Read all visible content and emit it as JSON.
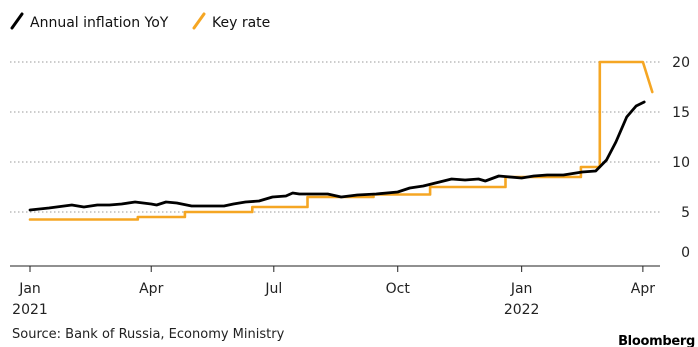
{
  "chart_data": {
    "type": "line",
    "series": [
      {
        "name": "Annual inflation YoY",
        "color": "#000000",
        "points": [
          [
            "2021-01-01",
            5.2
          ],
          [
            "2021-01-15",
            5.4
          ],
          [
            "2021-02-01",
            5.7
          ],
          [
            "2021-02-10",
            5.5
          ],
          [
            "2021-02-20",
            5.7
          ],
          [
            "2021-03-01",
            5.7
          ],
          [
            "2021-03-10",
            5.8
          ],
          [
            "2021-03-20",
            6.0
          ],
          [
            "2021-04-01",
            5.8
          ],
          [
            "2021-04-05",
            5.7
          ],
          [
            "2021-04-12",
            6.0
          ],
          [
            "2021-04-20",
            5.9
          ],
          [
            "2021-05-01",
            5.6
          ],
          [
            "2021-05-15",
            5.6
          ],
          [
            "2021-05-25",
            5.6
          ],
          [
            "2021-06-01",
            5.8
          ],
          [
            "2021-06-10",
            6.0
          ],
          [
            "2021-06-20",
            6.1
          ],
          [
            "2021-06-30",
            6.5
          ],
          [
            "2021-07-10",
            6.6
          ],
          [
            "2021-07-15",
            6.9
          ],
          [
            "2021-07-20",
            6.8
          ],
          [
            "2021-07-30",
            6.8
          ],
          [
            "2021-08-10",
            6.8
          ],
          [
            "2021-08-20",
            6.5
          ],
          [
            "2021-09-01",
            6.7
          ],
          [
            "2021-09-15",
            6.8
          ],
          [
            "2021-10-01",
            7.0
          ],
          [
            "2021-10-10",
            7.4
          ],
          [
            "2021-10-20",
            7.6
          ],
          [
            "2021-11-01",
            8.0
          ],
          [
            "2021-11-10",
            8.3
          ],
          [
            "2021-11-20",
            8.2
          ],
          [
            "2021-11-30",
            8.3
          ],
          [
            "2021-12-05",
            8.1
          ],
          [
            "2021-12-15",
            8.6
          ],
          [
            "2022-01-01",
            8.4
          ],
          [
            "2022-01-10",
            8.6
          ],
          [
            "2022-01-20",
            8.7
          ],
          [
            "2022-02-01",
            8.7
          ],
          [
            "2022-02-15",
            9.0
          ],
          [
            "2022-02-25",
            9.1
          ],
          [
            "2022-03-05",
            10.2
          ],
          [
            "2022-03-12",
            12.0
          ],
          [
            "2022-03-20",
            14.5
          ],
          [
            "2022-03-27",
            15.6
          ],
          [
            "2022-04-02",
            16.0
          ]
        ]
      },
      {
        "name": "Key rate",
        "color": "#f5a623",
        "points": [
          [
            "2021-01-01",
            4.25
          ],
          [
            "2021-03-22",
            4.25
          ],
          [
            "2021-03-22",
            4.5
          ],
          [
            "2021-04-26",
            4.5
          ],
          [
            "2021-04-26",
            5.0
          ],
          [
            "2021-06-15",
            5.0
          ],
          [
            "2021-06-15",
            5.5
          ],
          [
            "2021-07-26",
            5.5
          ],
          [
            "2021-07-26",
            6.5
          ],
          [
            "2021-09-13",
            6.5
          ],
          [
            "2021-09-13",
            6.75
          ],
          [
            "2021-10-25",
            6.75
          ],
          [
            "2021-10-25",
            7.5
          ],
          [
            "2021-12-20",
            7.5
          ],
          [
            "2021-12-20",
            8.5
          ],
          [
            "2022-02-14",
            8.5
          ],
          [
            "2022-02-14",
            9.5
          ],
          [
            "2022-02-28",
            9.5
          ],
          [
            "2022-02-28",
            20.0
          ],
          [
            "2022-04-01",
            20.0
          ],
          [
            "2022-04-08",
            17.0
          ]
        ]
      }
    ],
    "y_ticks": [
      "20",
      "15",
      "10",
      "5",
      "0"
    ],
    "ylim": [
      0,
      20
    ],
    "x_ticks": [
      {
        "label": "Jan",
        "sub": "2021",
        "date": "2021-01-01"
      },
      {
        "label": "Apr",
        "sub": "",
        "date": "2021-04-01"
      },
      {
        "label": "Jul",
        "sub": "",
        "date": "2021-07-01"
      },
      {
        "label": "Oct",
        "sub": "",
        "date": "2021-10-01"
      },
      {
        "label": "Jan",
        "sub": "2022",
        "date": "2022-01-01"
      },
      {
        "label": "Apr",
        "sub": "",
        "date": "2022-04-01"
      }
    ],
    "xlim": [
      "2021-01-01",
      "2022-04-10"
    ],
    "grid": "horizontal dotted",
    "legend_position": "top-left"
  },
  "legend": {
    "inflation_label": "Annual inflation YoY",
    "keyrate_label": "Key rate"
  },
  "source": "Source: Bank of Russia, Economy Ministry",
  "brand": "Bloomberg"
}
